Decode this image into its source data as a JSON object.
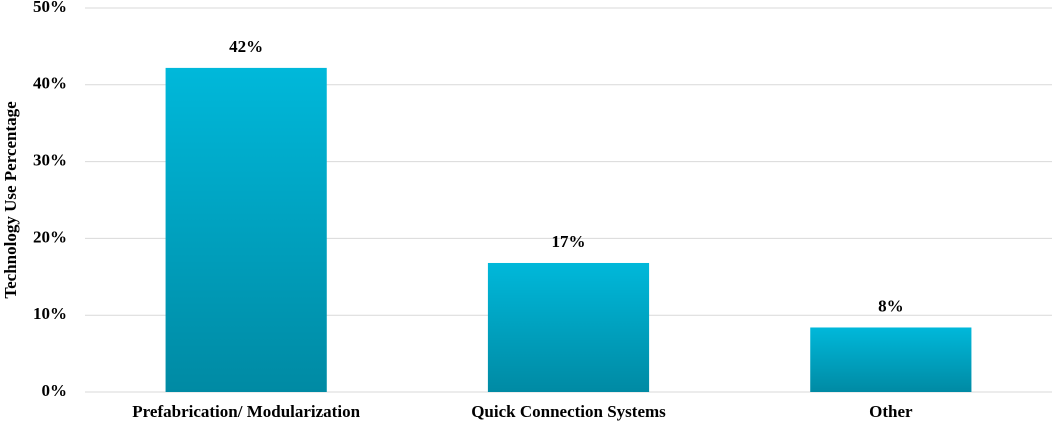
{
  "chart_data": {
    "type": "bar",
    "y_label": "Technology Use Percentage",
    "categories": [
      "Prefabrication/ Modularization",
      "Quick Connection Systems",
      "Other"
    ],
    "values": [
      42.2,
      16.8,
      8.4
    ],
    "value_labels": [
      "42%",
      "17%",
      "8%"
    ],
    "color": "#00b8da",
    "ylim": [
      0,
      50
    ],
    "yticks": [
      {
        "value": 0,
        "label": "0%"
      },
      {
        "value": 10,
        "label": "10%"
      },
      {
        "value": 20,
        "label": "20%"
      },
      {
        "value": 30,
        "label": "30%"
      },
      {
        "value": 40,
        "label": "40%"
      },
      {
        "value": 50,
        "label": "50%"
      }
    ],
    "grid": true
  }
}
